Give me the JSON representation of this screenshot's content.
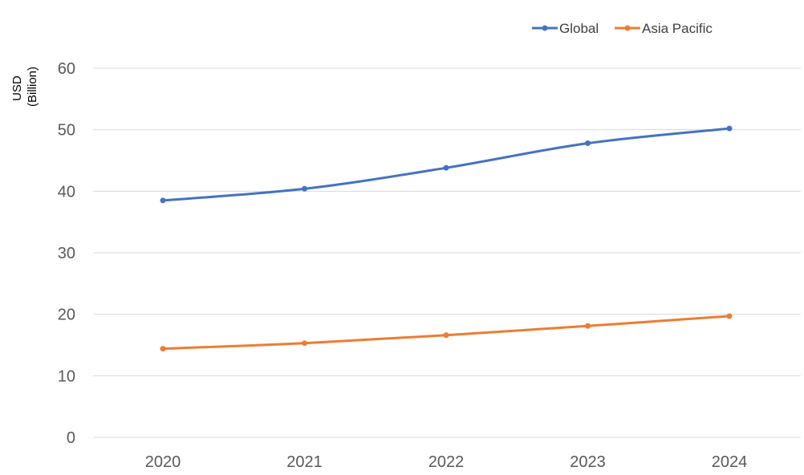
{
  "chart_data": {
    "type": "line",
    "title": "",
    "xlabel": "",
    "ylabel": "USD\n(Billion)",
    "ylabel_lines": [
      "USD",
      "(Billion)"
    ],
    "ylim": [
      0,
      60
    ],
    "yticks": [
      0,
      10,
      20,
      30,
      40,
      50,
      60
    ],
    "ytick_labels": [
      "0",
      "10",
      "20",
      "30",
      "40",
      "50",
      "60"
    ],
    "categories": [
      "2020",
      "2021",
      "2022",
      "2023",
      "2024"
    ],
    "grid": true,
    "legend_position": "top-right",
    "series": [
      {
        "name": "Global",
        "color": "#4472C4",
        "values": [
          38.5,
          40.4,
          43.8,
          47.8,
          50.2
        ]
      },
      {
        "name": "Asia Pacific",
        "color": "#ED7D31",
        "values": [
          14.4,
          15.3,
          16.6,
          18.1,
          19.7
        ]
      }
    ]
  }
}
